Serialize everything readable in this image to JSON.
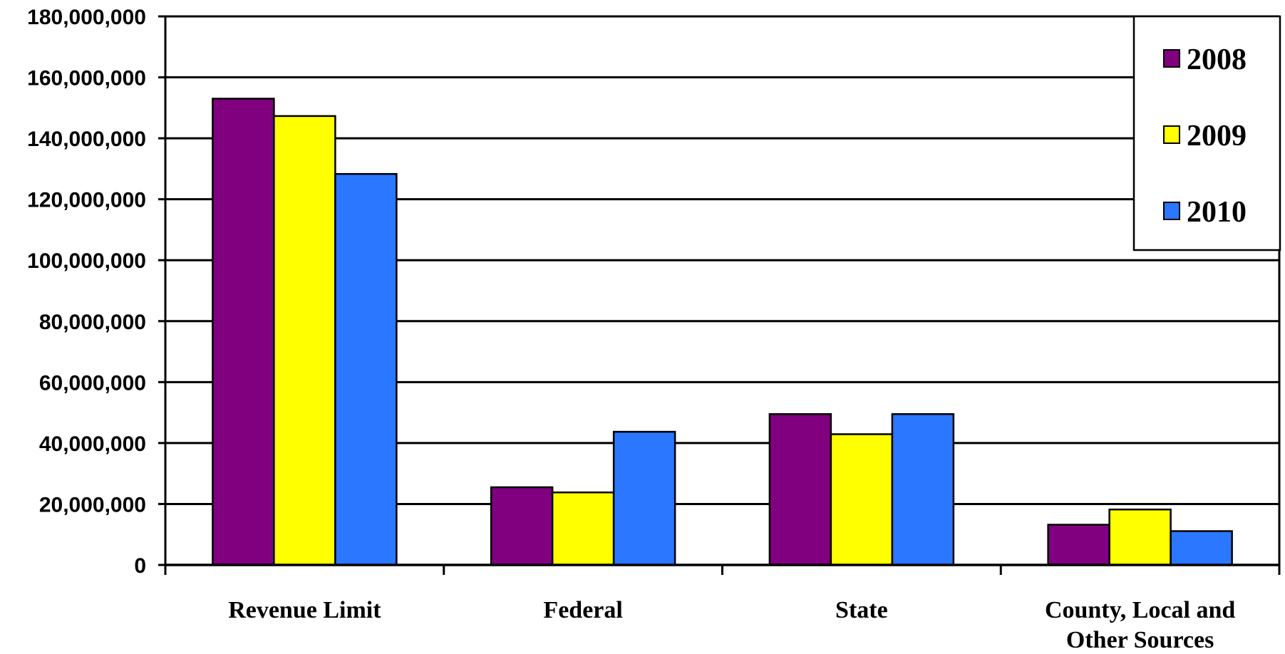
{
  "chart_data": {
    "type": "bar",
    "categories": [
      "Revenue Limit",
      "Federal",
      "State",
      "County, Local and Other Sources"
    ],
    "category_lines": [
      [
        "Revenue Limit"
      ],
      [
        "Federal"
      ],
      [
        "State"
      ],
      [
        "County, Local and",
        "Other Sources"
      ]
    ],
    "series": [
      {
        "name": "2008",
        "color": "#800080",
        "values": [
          153000000,
          25500000,
          49500000,
          13200000
        ]
      },
      {
        "name": "2009",
        "color": "#FFFF00",
        "values": [
          147300000,
          23800000,
          42900000,
          18200000
        ]
      },
      {
        "name": "2010",
        "color": "#2B77FF",
        "values": [
          128300000,
          43700000,
          49500000,
          11100000
        ]
      }
    ],
    "yticks": [
      "0",
      "20,000,000",
      "40,000,000",
      "60,000,000",
      "80,000,000",
      "100,000,000",
      "120,000,000",
      "140,000,000",
      "160,000,000",
      "180,000,000"
    ],
    "ylim": [
      0,
      180000000
    ],
    "grid": true,
    "legend_position": "top-right",
    "title": "",
    "xlabel": "",
    "ylabel": ""
  }
}
